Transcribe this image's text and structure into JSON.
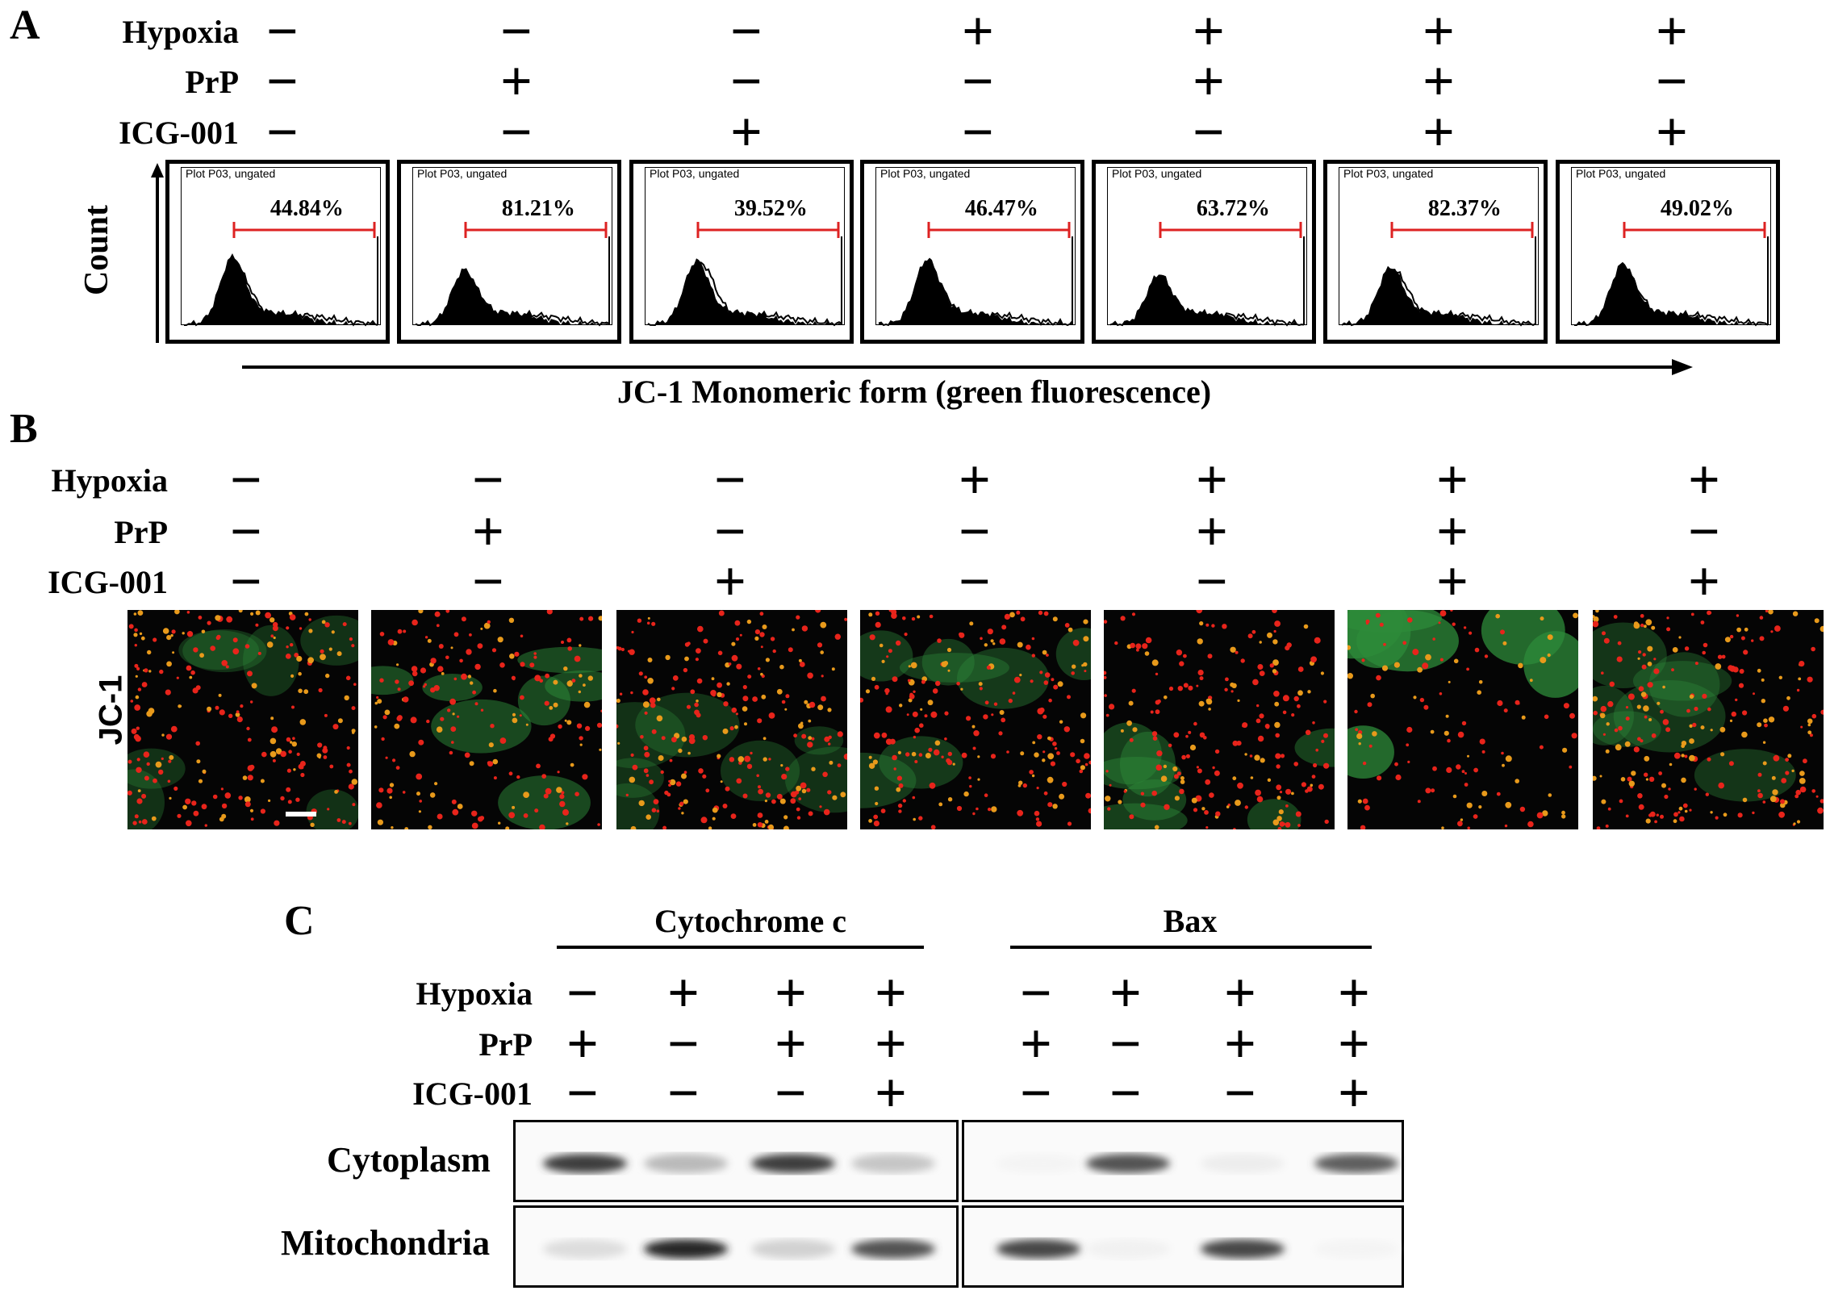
{
  "panels": {
    "A": {
      "letter": "A",
      "conditions": {
        "labels": [
          "Hypoxia",
          "PrP",
          "ICG-001"
        ],
        "rows": [
          [
            "−",
            "−",
            "−",
            "+",
            "+",
            "+",
            "+"
          ],
          [
            "−",
            "+",
            "−",
            "−",
            "+",
            "+",
            "−"
          ],
          [
            "−",
            "−",
            "+",
            "−",
            "−",
            "+",
            "+"
          ]
        ]
      },
      "plot_title": "Plot P03, ungated",
      "percentages": [
        "44.84%",
        "81.21%",
        "39.52%",
        "46.47%",
        "63.72%",
        "82.37%",
        "49.02%"
      ],
      "y_axis_label": "Count",
      "x_axis_label": "JC-1 Monomeric form (green fluorescence)"
    },
    "B": {
      "letter": "B",
      "conditions": {
        "labels": [
          "Hypoxia",
          "PrP",
          "ICG-001"
        ],
        "rows": [
          [
            "−",
            "−",
            "−",
            "+",
            "+",
            "+",
            "+"
          ],
          [
            "−",
            "+",
            "−",
            "−",
            "+",
            "+",
            "−"
          ],
          [
            "−",
            "−",
            "+",
            "−",
            "−",
            "+",
            "+"
          ]
        ]
      },
      "image_label": "JC-1",
      "green_level": [
        0.15,
        0.45,
        0.15,
        0.25,
        0.35,
        0.9,
        0.2
      ]
    },
    "C": {
      "letter": "C",
      "groups": [
        "Cytochrome c",
        "Bax"
      ],
      "conditions": {
        "labels": [
          "Hypoxia",
          "PrP",
          "ICG-001"
        ],
        "rows": [
          [
            "−",
            "+",
            "+",
            "+",
            "−",
            "+",
            "+",
            "+"
          ],
          [
            "+",
            "−",
            "+",
            "+",
            "+",
            "−",
            "+",
            "+"
          ],
          [
            "−",
            "−",
            "−",
            "+",
            "−",
            "−",
            "−",
            "+"
          ]
        ]
      },
      "blot_rows": [
        "Cytoplasm",
        "Mitochondria"
      ],
      "band_intensity": {
        "Cytoplasm": [
          0.85,
          0.3,
          0.85,
          0.25,
          0.05,
          0.75,
          0.08,
          0.7
        ],
        "Mitochondria": [
          0.15,
          0.95,
          0.2,
          0.75,
          0.8,
          0.06,
          0.8,
          0.05
        ]
      }
    }
  }
}
